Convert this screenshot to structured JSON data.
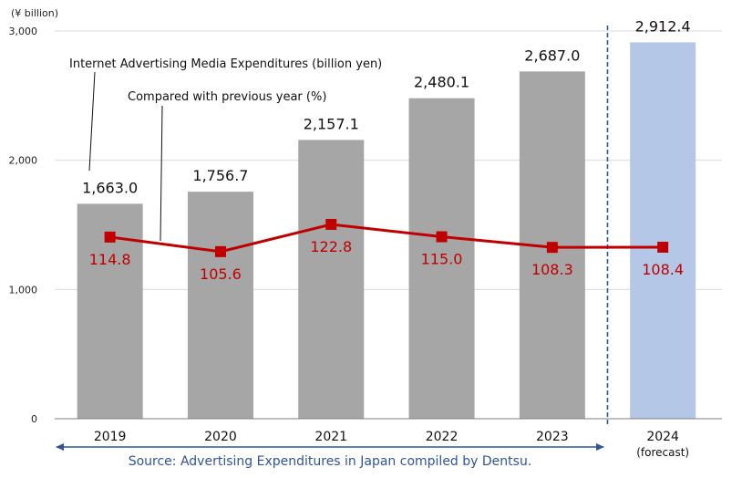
{
  "chart_data": {
    "type": "bar",
    "ylabel": "(¥ billion)",
    "ylim": [
      0,
      3000
    ],
    "yticks": [
      0,
      1000,
      2000,
      3000
    ],
    "ytick_labels": [
      "0",
      "1,000",
      "2,000",
      "3,000"
    ],
    "categories": [
      "2019",
      "2020",
      "2021",
      "2022",
      "2023",
      "2024"
    ],
    "category_sublabels": [
      "",
      "",
      "",
      "",
      "",
      "(forecast)"
    ],
    "series": [
      {
        "name": "Internet Advertising Media Expenditures (billion yen)",
        "type": "bar",
        "values": [
          1663.0,
          1756.7,
          2157.1,
          2480.1,
          2687.0,
          2912.4
        ],
        "labels": [
          "1,663.0",
          "1,756.7",
          "2,157.1",
          "2,480.1",
          "2,687.0",
          "2,912.4"
        ],
        "colors": [
          "#a6a6a6",
          "#a6a6a6",
          "#a6a6a6",
          "#a6a6a6",
          "#a6a6a6",
          "#b4c7e7"
        ]
      },
      {
        "name": "Compared with previous year (%)",
        "type": "line",
        "values": [
          114.8,
          105.6,
          122.8,
          115.0,
          108.3,
          108.4
        ],
        "labels": [
          "114.8",
          "105.6",
          "122.8",
          "115.0",
          "108.3",
          "108.4"
        ],
        "color": "#c00000"
      }
    ],
    "forecast_divider": "between 2023 and 2024",
    "source": "Source: Advertising Expenditures in Japan compiled by Dentsu."
  }
}
